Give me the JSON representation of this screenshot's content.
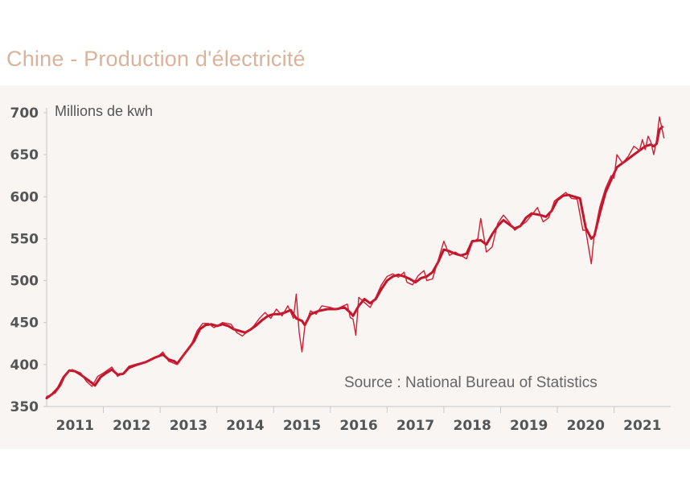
{
  "title": "Chine - Production d'électricité",
  "chart_data": {
    "type": "line",
    "ylabel": "Millions de kwh",
    "source": "Source : National Bureau of Statistics",
    "ylim": [
      350,
      700
    ],
    "yticks": [
      350,
      400,
      450,
      500,
      550,
      600,
      650,
      700
    ],
    "xlim": [
      2010.5,
      2021.3
    ],
    "xticks": [
      {
        "label": "2011",
        "pos": 2011
      },
      {
        "label": "2012",
        "pos": 2012
      },
      {
        "label": "2013",
        "pos": 2013
      },
      {
        "label": "2014",
        "pos": 2014
      },
      {
        "label": "2015",
        "pos": 2015
      },
      {
        "label": "2016",
        "pos": 2016
      },
      {
        "label": "2017",
        "pos": 2017
      },
      {
        "label": "2018",
        "pos": 2018
      },
      {
        "label": "2019",
        "pos": 2019
      },
      {
        "label": "2020",
        "pos": 2020
      },
      {
        "label": "2021",
        "pos": 2021
      }
    ],
    "grid": false,
    "series": [
      {
        "color": "#c0152a",
        "width": 3,
        "points": [
          [
            2010.5,
            360
          ],
          [
            2010.6,
            365
          ],
          [
            2010.7,
            372
          ],
          [
            2010.8,
            385
          ],
          [
            2010.9,
            393
          ],
          [
            2011.0,
            392
          ],
          [
            2011.1,
            388
          ],
          [
            2011.2,
            383
          ],
          [
            2011.3,
            378
          ],
          [
            2011.35,
            375
          ],
          [
            2011.45,
            385
          ],
          [
            2011.55,
            390
          ],
          [
            2011.65,
            394
          ],
          [
            2011.75,
            388
          ],
          [
            2011.85,
            389
          ],
          [
            2011.95,
            396
          ],
          [
            2012.1,
            400
          ],
          [
            2012.25,
            403
          ],
          [
            2012.4,
            408
          ],
          [
            2012.55,
            412
          ],
          [
            2012.65,
            406
          ],
          [
            2012.75,
            404
          ],
          [
            2012.8,
            401
          ],
          [
            2012.9,
            410
          ],
          [
            2013.0,
            419
          ],
          [
            2013.1,
            428
          ],
          [
            2013.2,
            442
          ],
          [
            2013.3,
            447
          ],
          [
            2013.4,
            448
          ],
          [
            2013.5,
            446
          ],
          [
            2013.6,
            448
          ],
          [
            2013.7,
            446
          ],
          [
            2013.8,
            442
          ],
          [
            2013.9,
            440
          ],
          [
            2014.0,
            438
          ],
          [
            2014.1,
            442
          ],
          [
            2014.2,
            447
          ],
          [
            2014.3,
            453
          ],
          [
            2014.4,
            458
          ],
          [
            2014.5,
            460
          ],
          [
            2014.6,
            460
          ],
          [
            2014.7,
            462
          ],
          [
            2014.8,
            465
          ],
          [
            2014.9,
            455
          ],
          [
            2015.0,
            452
          ],
          [
            2015.05,
            447
          ],
          [
            2015.15,
            460
          ],
          [
            2015.3,
            464
          ],
          [
            2015.45,
            466
          ],
          [
            2015.6,
            466
          ],
          [
            2015.75,
            468
          ],
          [
            2015.85,
            462
          ],
          [
            2015.9,
            458
          ],
          [
            2016.0,
            470
          ],
          [
            2016.1,
            478
          ],
          [
            2016.2,
            473
          ],
          [
            2016.3,
            478
          ],
          [
            2016.4,
            490
          ],
          [
            2016.5,
            500
          ],
          [
            2016.6,
            505
          ],
          [
            2016.7,
            507
          ],
          [
            2016.8,
            505
          ],
          [
            2016.9,
            502
          ],
          [
            2017.0,
            498
          ],
          [
            2017.1,
            503
          ],
          [
            2017.2,
            505
          ],
          [
            2017.3,
            510
          ],
          [
            2017.4,
            522
          ],
          [
            2017.5,
            537
          ],
          [
            2017.6,
            535
          ],
          [
            2017.7,
            532
          ],
          [
            2017.8,
            530
          ],
          [
            2017.9,
            532
          ],
          [
            2018.0,
            547
          ],
          [
            2018.15,
            548
          ],
          [
            2018.25,
            543
          ],
          [
            2018.35,
            555
          ],
          [
            2018.45,
            565
          ],
          [
            2018.55,
            572
          ],
          [
            2018.65,
            567
          ],
          [
            2018.75,
            562
          ],
          [
            2018.85,
            565
          ],
          [
            2018.95,
            575
          ],
          [
            2019.05,
            580
          ],
          [
            2019.2,
            578
          ],
          [
            2019.3,
            576
          ],
          [
            2019.4,
            583
          ],
          [
            2019.5,
            596
          ],
          [
            2019.6,
            601
          ],
          [
            2019.7,
            602
          ],
          [
            2019.8,
            600
          ],
          [
            2019.9,
            598
          ],
          [
            2020.0,
            563
          ],
          [
            2020.1,
            550
          ],
          [
            2020.15,
            553
          ],
          [
            2020.25,
            580
          ],
          [
            2020.35,
            605
          ],
          [
            2020.45,
            620
          ],
          [
            2020.55,
            635
          ],
          [
            2020.65,
            640
          ],
          [
            2020.75,
            645
          ],
          [
            2020.85,
            650
          ],
          [
            2020.95,
            655
          ],
          [
            2021.05,
            660
          ],
          [
            2021.15,
            662
          ],
          [
            2021.2,
            660
          ],
          [
            2021.25,
            663
          ],
          [
            2021.3,
            680
          ],
          [
            2021.35,
            683
          ]
        ]
      },
      {
        "color": "#d01e34",
        "width": 1.4,
        "points": [
          [
            2010.5,
            362
          ],
          [
            2010.65,
            366
          ],
          [
            2010.75,
            375
          ],
          [
            2010.85,
            390
          ],
          [
            2010.95,
            394
          ],
          [
            2011.1,
            390
          ],
          [
            2011.2,
            380
          ],
          [
            2011.3,
            374
          ],
          [
            2011.4,
            386
          ],
          [
            2011.5,
            390
          ],
          [
            2011.65,
            397
          ],
          [
            2011.75,
            386
          ],
          [
            2011.85,
            390
          ],
          [
            2011.95,
            398
          ],
          [
            2012.1,
            401
          ],
          [
            2012.3,
            404
          ],
          [
            2012.45,
            409
          ],
          [
            2012.55,
            415
          ],
          [
            2012.65,
            404
          ],
          [
            2012.8,
            400
          ],
          [
            2012.9,
            410
          ],
          [
            2013.05,
            424
          ],
          [
            2013.15,
            440
          ],
          [
            2013.25,
            449
          ],
          [
            2013.35,
            449
          ],
          [
            2013.45,
            444
          ],
          [
            2013.6,
            450
          ],
          [
            2013.75,
            448
          ],
          [
            2013.85,
            438
          ],
          [
            2013.95,
            434
          ],
          [
            2014.05,
            440
          ],
          [
            2014.15,
            446
          ],
          [
            2014.25,
            455
          ],
          [
            2014.35,
            462
          ],
          [
            2014.45,
            455
          ],
          [
            2014.55,
            466
          ],
          [
            2014.65,
            458
          ],
          [
            2014.75,
            470
          ],
          [
            2014.85,
            455
          ],
          [
            2014.9,
            484
          ],
          [
            2014.95,
            438
          ],
          [
            2015.0,
            415
          ],
          [
            2015.05,
            445
          ],
          [
            2015.15,
            464
          ],
          [
            2015.25,
            460
          ],
          [
            2015.35,
            470
          ],
          [
            2015.5,
            468
          ],
          [
            2015.6,
            466
          ],
          [
            2015.7,
            469
          ],
          [
            2015.8,
            472
          ],
          [
            2015.85,
            456
          ],
          [
            2015.9,
            454
          ],
          [
            2015.95,
            435
          ],
          [
            2016.0,
            480
          ],
          [
            2016.1,
            474
          ],
          [
            2016.2,
            468
          ],
          [
            2016.3,
            480
          ],
          [
            2016.4,
            495
          ],
          [
            2016.5,
            505
          ],
          [
            2016.6,
            508
          ],
          [
            2016.7,
            504
          ],
          [
            2016.8,
            510
          ],
          [
            2016.85,
            498
          ],
          [
            2016.95,
            495
          ],
          [
            2017.05,
            506
          ],
          [
            2017.15,
            512
          ],
          [
            2017.2,
            500
          ],
          [
            2017.3,
            502
          ],
          [
            2017.4,
            524
          ],
          [
            2017.5,
            547
          ],
          [
            2017.6,
            530
          ],
          [
            2017.7,
            534
          ],
          [
            2017.8,
            530
          ],
          [
            2017.9,
            526
          ],
          [
            2018.0,
            545
          ],
          [
            2018.1,
            550
          ],
          [
            2018.15,
            574
          ],
          [
            2018.25,
            534
          ],
          [
            2018.35,
            540
          ],
          [
            2018.45,
            568
          ],
          [
            2018.55,
            578
          ],
          [
            2018.65,
            570
          ],
          [
            2018.75,
            560
          ],
          [
            2018.85,
            565
          ],
          [
            2018.95,
            570
          ],
          [
            2019.05,
            578
          ],
          [
            2019.15,
            587
          ],
          [
            2019.25,
            570
          ],
          [
            2019.35,
            575
          ],
          [
            2019.45,
            595
          ],
          [
            2019.55,
            600
          ],
          [
            2019.65,
            605
          ],
          [
            2019.75,
            598
          ],
          [
            2019.85,
            597
          ],
          [
            2019.95,
            560
          ],
          [
            2020.0,
            560
          ],
          [
            2020.05,
            540
          ],
          [
            2020.1,
            520
          ],
          [
            2020.15,
            555
          ],
          [
            2020.25,
            588
          ],
          [
            2020.35,
            610
          ],
          [
            2020.45,
            625
          ],
          [
            2020.5,
            622
          ],
          [
            2020.55,
            650
          ],
          [
            2020.65,
            640
          ],
          [
            2020.75,
            648
          ],
          [
            2020.85,
            660
          ],
          [
            2020.95,
            655
          ],
          [
            2021.0,
            668
          ],
          [
            2021.05,
            656
          ],
          [
            2021.1,
            672
          ],
          [
            2021.15,
            665
          ],
          [
            2021.2,
            650
          ],
          [
            2021.25,
            668
          ],
          [
            2021.3,
            695
          ],
          [
            2021.38,
            670
          ]
        ]
      }
    ]
  }
}
